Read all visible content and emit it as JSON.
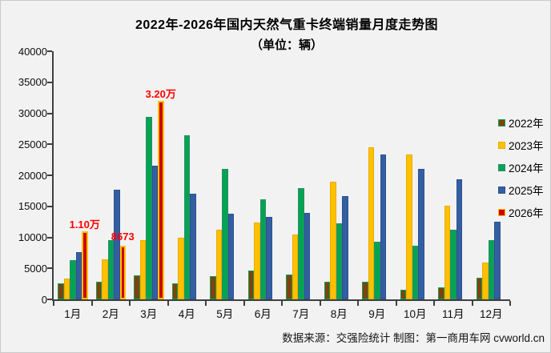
{
  "title": {
    "line1": "2022年-2026年国内天然气重卡终端销量月度走势图",
    "line2": "（单位：辆）"
  },
  "source": "数据来源：交强险统计  制图：第一商用车网 cvworld.cn",
  "colors": {
    "background": "#F2F2F2",
    "axis": "#3f3f3f",
    "annotation": "#FF0000",
    "text": "#000000"
  },
  "chart_data": {
    "type": "bar",
    "categories": [
      "1月",
      "2月",
      "3月",
      "4月",
      "5月",
      "6月",
      "7月",
      "8月",
      "9月",
      "10月",
      "11月",
      "12月"
    ],
    "series": [
      {
        "name": "2022年",
        "fill": "#853F0E",
        "border": "#00A551",
        "values": [
          2600,
          2800,
          3900,
          2600,
          3700,
          4700,
          4000,
          2800,
          2900,
          1500,
          2000,
          3500
        ]
      },
      {
        "name": "2023年",
        "fill": "#FFC000",
        "border": "#E8AC00",
        "values": [
          3300,
          6400,
          9500,
          10000,
          11200,
          12400,
          10500,
          19000,
          24500,
          23300,
          15100,
          5900
        ]
      },
      {
        "name": "2024年",
        "fill": "#00A551",
        "border": "#2E8B6E",
        "values": [
          6300,
          9500,
          29400,
          26400,
          21000,
          16100,
          17900,
          12300,
          9300,
          8700,
          11200,
          9500
        ]
      },
      {
        "name": "2025年",
        "fill": "#335FA2",
        "border": "#2B5190",
        "values": [
          7600,
          17700,
          21500,
          17000,
          13800,
          13300,
          13900,
          16600,
          23400,
          21000,
          19400,
          12500
        ]
      },
      {
        "name": "2026年",
        "fill": "#CC0000",
        "border": "#FFC000",
        "values": [
          11000,
          8673,
          32000,
          null,
          null,
          null,
          null,
          null,
          null,
          null,
          null,
          null
        ]
      }
    ],
    "annotations": [
      {
        "series_index": 4,
        "month_index": 0,
        "text": "1.10万"
      },
      {
        "series_index": 4,
        "month_index": 1,
        "text": "8673"
      },
      {
        "series_index": 4,
        "month_index": 2,
        "text": "3.20万"
      }
    ],
    "ylim": [
      0,
      40000
    ],
    "ytick_step": 5000,
    "legend_position": "right",
    "grid": false
  }
}
